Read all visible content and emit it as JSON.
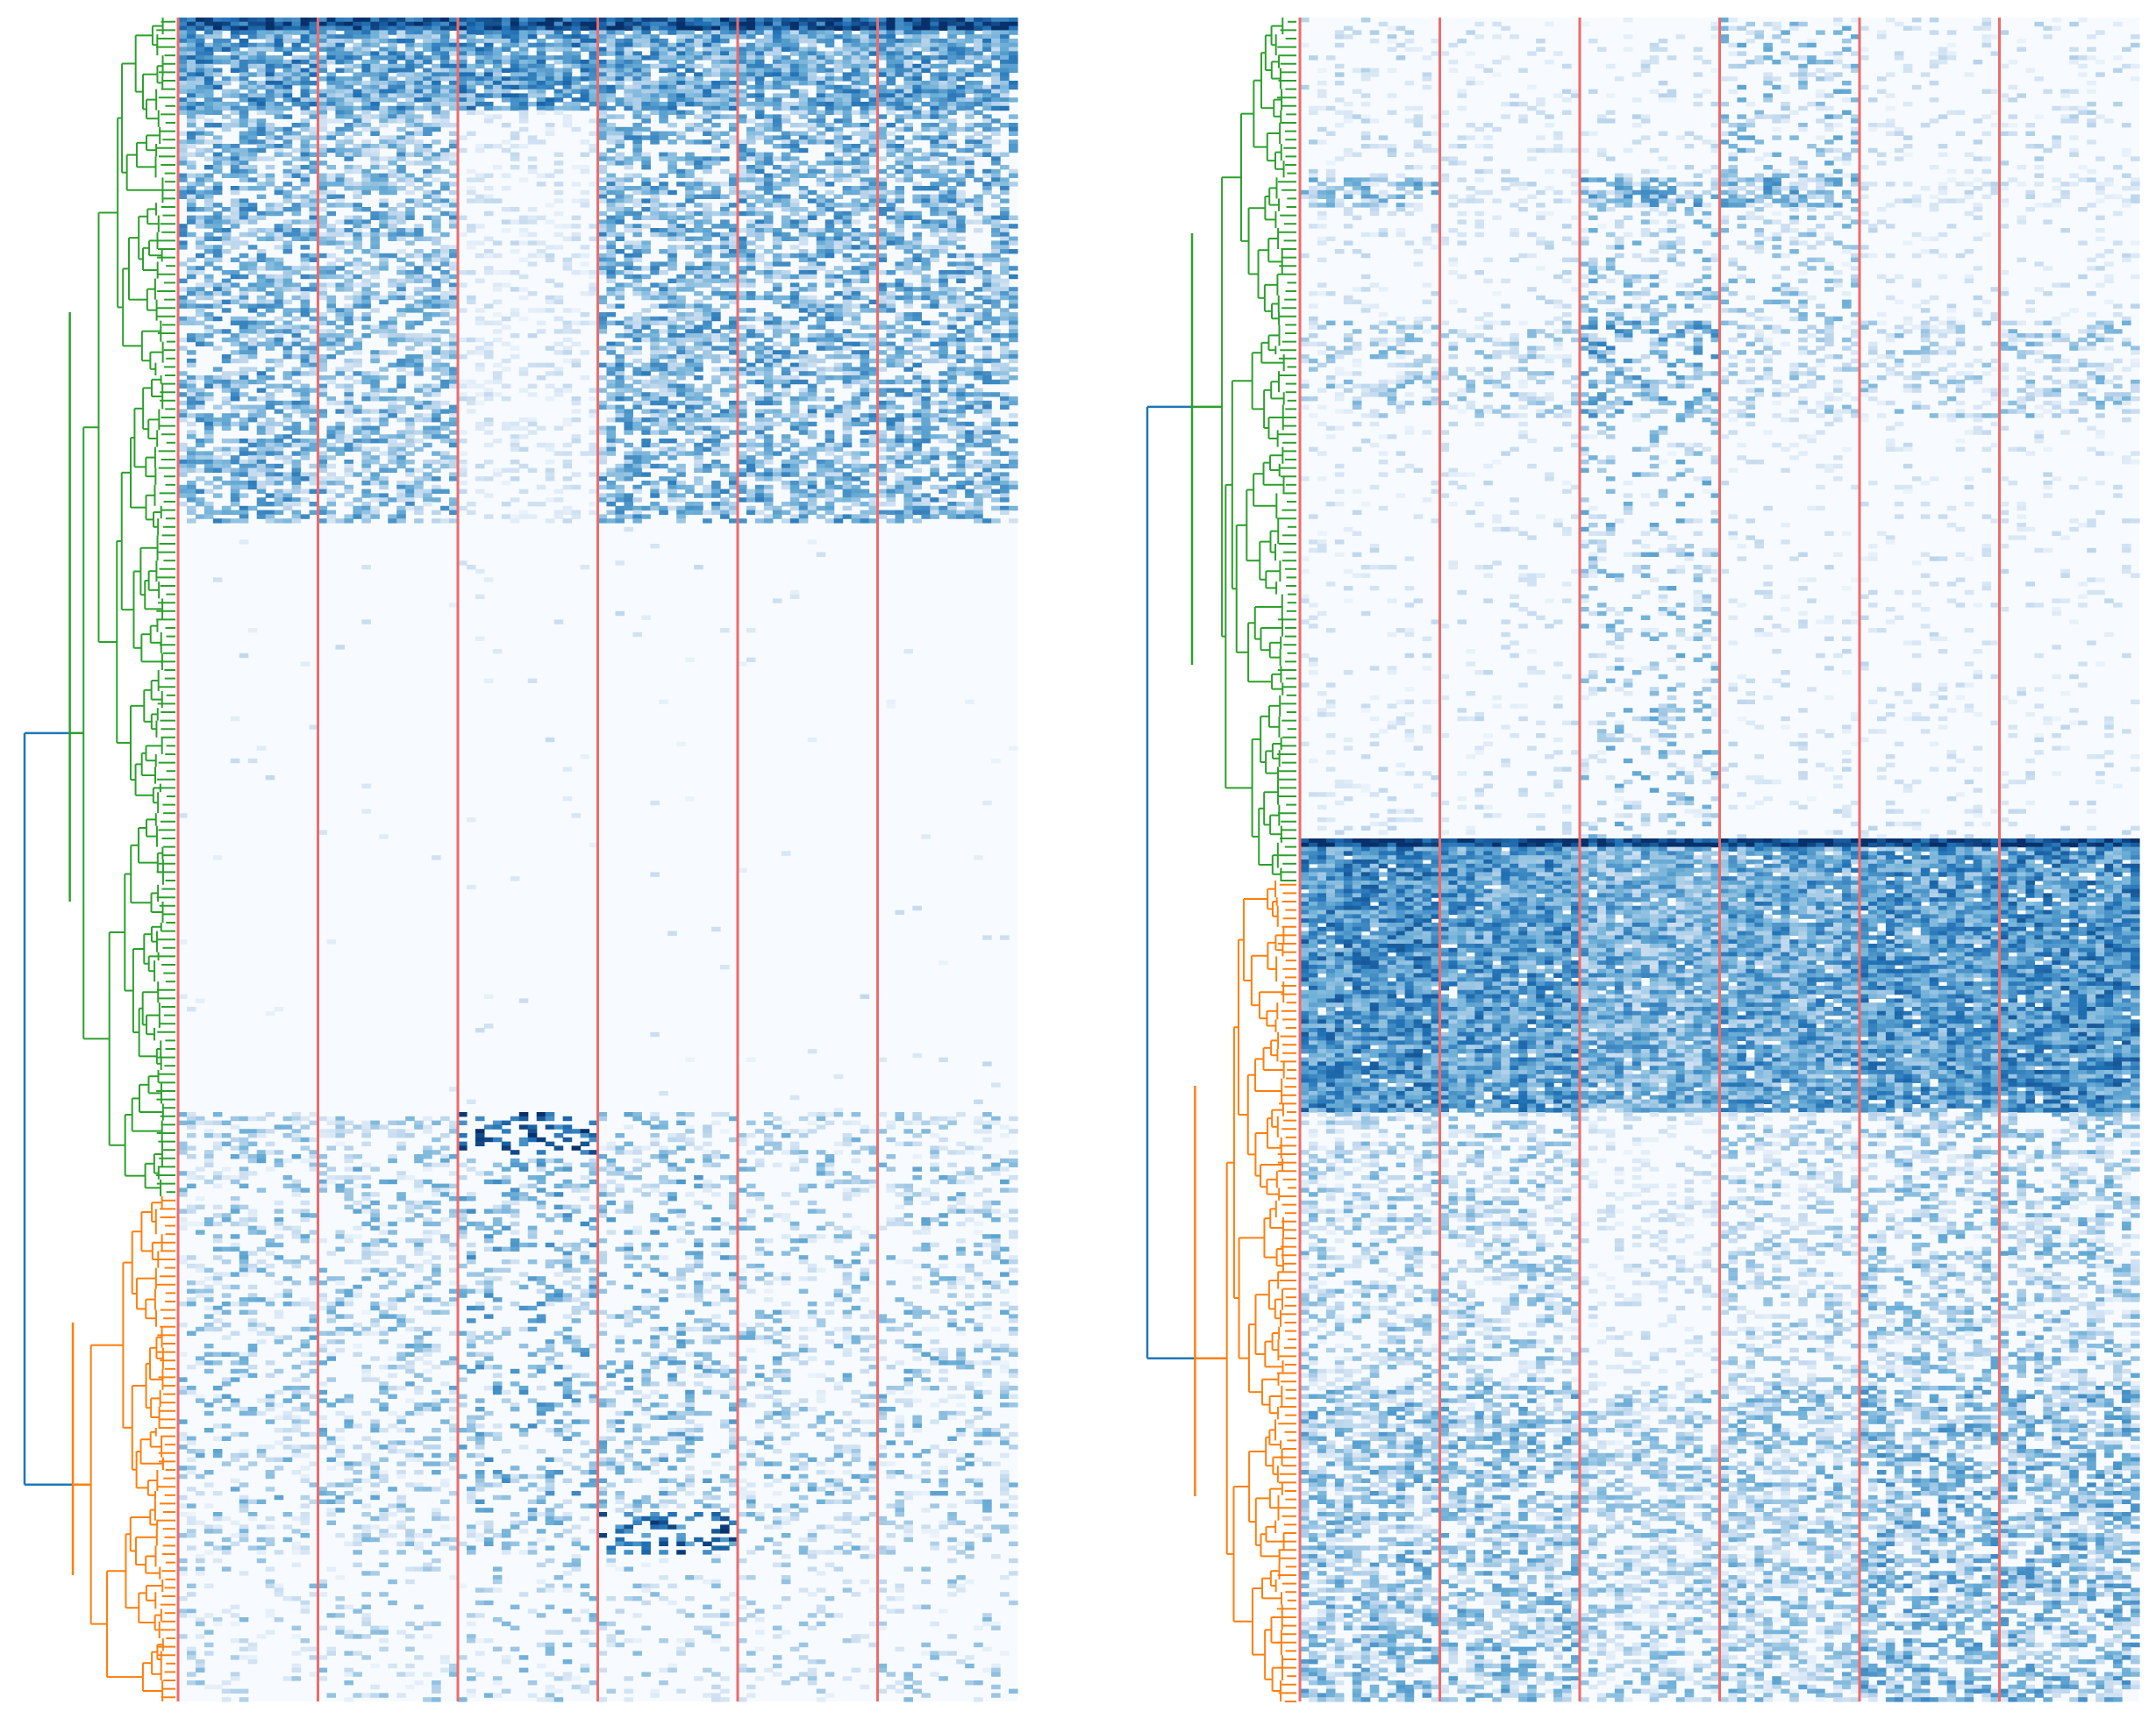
{
  "chart_data": [
    {
      "type": "heatmap",
      "panel": "left",
      "title": "",
      "xlabel": "",
      "ylabel": "",
      "colormap": "Blues",
      "value_range": [
        0,
        1
      ],
      "columns_total": 96,
      "column_groups": 6,
      "column_group_separator_color": "#f06a6a",
      "rows_total": 400,
      "row_blocks": [
        {
          "from": 0,
          "to": 3,
          "level": [
            0.85,
            0.85,
            0.85,
            0.85,
            0.85,
            0.85
          ],
          "density": 1.0
        },
        {
          "from": 3,
          "to": 22,
          "level": [
            0.55,
            0.5,
            0.55,
            0.5,
            0.5,
            0.5
          ],
          "density": 0.85
        },
        {
          "from": 22,
          "to": 120,
          "level": [
            0.45,
            0.4,
            0.02,
            0.45,
            0.45,
            0.45
          ],
          "density": 0.6
        },
        {
          "from": 120,
          "to": 260,
          "level": [
            0.02,
            0.02,
            0.02,
            0.02,
            0.02,
            0.02
          ],
          "density": 0.02
        },
        {
          "from": 260,
          "to": 270,
          "level": [
            0.25,
            0.2,
            0.85,
            0.3,
            0.25,
            0.2
          ],
          "density": 0.4
        },
        {
          "from": 270,
          "to": 355,
          "level": [
            0.3,
            0.3,
            0.4,
            0.35,
            0.3,
            0.3
          ],
          "density": 0.3
        },
        {
          "from": 355,
          "to": 365,
          "level": [
            0.25,
            0.2,
            0.3,
            0.75,
            0.25,
            0.2
          ],
          "density": 0.35
        },
        {
          "from": 365,
          "to": 400,
          "level": [
            0.2,
            0.2,
            0.25,
            0.2,
            0.15,
            0.2
          ],
          "density": 0.2
        }
      ],
      "dendrogram": {
        "orientation": "left",
        "clusters": [
          {
            "name": "",
            "color": "#2ca02c",
            "rows": [
              0,
              280
            ]
          },
          {
            "name": "",
            "color": "#ff7f0e",
            "rows": [
              280,
              400
            ]
          }
        ],
        "root_color": "#1f77b4"
      }
    },
    {
      "type": "heatmap",
      "panel": "right",
      "title": "",
      "xlabel": "",
      "ylabel": "",
      "colormap": "Blues",
      "value_range": [
        0,
        1
      ],
      "columns_total": 96,
      "column_groups": 6,
      "column_group_separator_color": "#f06a6a",
      "rows_total": 400,
      "row_blocks": [
        {
          "from": 0,
          "to": 38,
          "level": [
            0.08,
            0.05,
            0.05,
            0.3,
            0.05,
            0.08
          ],
          "density": 0.3
        },
        {
          "from": 38,
          "to": 45,
          "level": [
            0.35,
            0.05,
            0.4,
            0.4,
            0.05,
            0.05
          ],
          "density": 0.7
        },
        {
          "from": 45,
          "to": 72,
          "level": [
            0.05,
            0.05,
            0.3,
            0.25,
            0.05,
            0.05
          ],
          "density": 0.3
        },
        {
          "from": 72,
          "to": 95,
          "level": [
            0.25,
            0.2,
            0.45,
            0.2,
            0.2,
            0.25
          ],
          "density": 0.45
        },
        {
          "from": 95,
          "to": 195,
          "level": [
            0.03,
            0.03,
            0.3,
            0.03,
            0.03,
            0.03
          ],
          "density": 0.25
        },
        {
          "from": 195,
          "to": 197,
          "level": [
            0.95,
            0.95,
            0.95,
            0.95,
            0.95,
            0.95
          ],
          "density": 1.0
        },
        {
          "from": 197,
          "to": 260,
          "level": [
            0.6,
            0.55,
            0.45,
            0.5,
            0.55,
            0.6
          ],
          "density": 0.95
        },
        {
          "from": 260,
          "to": 325,
          "level": [
            0.25,
            0.25,
            0.05,
            0.2,
            0.3,
            0.3
          ],
          "density": 0.5
        },
        {
          "from": 325,
          "to": 400,
          "level": [
            0.35,
            0.35,
            0.25,
            0.3,
            0.4,
            0.4
          ],
          "density": 0.6
        }
      ],
      "dendrogram": {
        "orientation": "left",
        "clusters": [
          {
            "name": "",
            "color": "#2ca02c",
            "rows": [
              0,
              205
            ]
          },
          {
            "name": "",
            "color": "#ff7f0e",
            "rows": [
              205,
              400
            ]
          }
        ],
        "root_color": "#1f77b4"
      }
    }
  ]
}
